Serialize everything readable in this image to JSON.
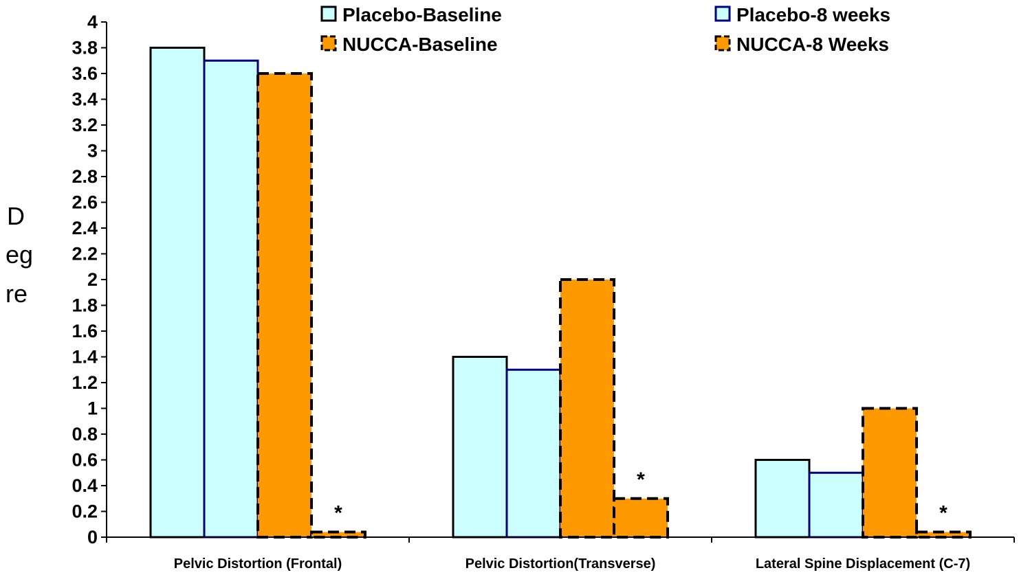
{
  "chart_data": {
    "type": "bar",
    "title": "",
    "xlabel": "",
    "ylabel_lines": [
      "D",
      "eg",
      "re"
    ],
    "ylim": [
      0,
      4
    ],
    "ytick_step": 0.2,
    "yticks": [
      "0",
      "0.2",
      "0.4",
      "0.6",
      "0.8",
      "1",
      "1.2",
      "1.4",
      "1.6",
      "1.8",
      "2",
      "2.2",
      "2.4",
      "2.6",
      "2.8",
      "3",
      "3.2",
      "3.4",
      "3.6",
      "3.8",
      "4"
    ],
    "grid": false,
    "legend_position": "top",
    "categories": [
      "Pelvic Distortion (Frontal)",
      "Pelvic Distortion(Transverse)",
      "Lateral Spine Displacement (C-7)"
    ],
    "series": [
      {
        "name": "Placebo-Baseline",
        "values": [
          3.8,
          1.4,
          0.6
        ],
        "fill": "#ccffff",
        "stroke": "#000000",
        "dashed": false
      },
      {
        "name": "Placebo-8 weeks",
        "values": [
          3.7,
          1.3,
          0.5
        ],
        "fill": "#ccffff",
        "stroke": "#000080",
        "dashed": false
      },
      {
        "name": "NUCCA-Baseline",
        "values": [
          3.6,
          2.0,
          1.0
        ],
        "fill": "#ff9900",
        "stroke": "#000000",
        "dashed": true
      },
      {
        "name": "NUCCA-8 Weeks",
        "values": [
          0.04,
          0.3,
          0.04
        ],
        "fill": "#ff9900",
        "stroke": "#000000",
        "dashed": true
      }
    ],
    "annotations": [
      "*",
      "*",
      "*"
    ]
  }
}
